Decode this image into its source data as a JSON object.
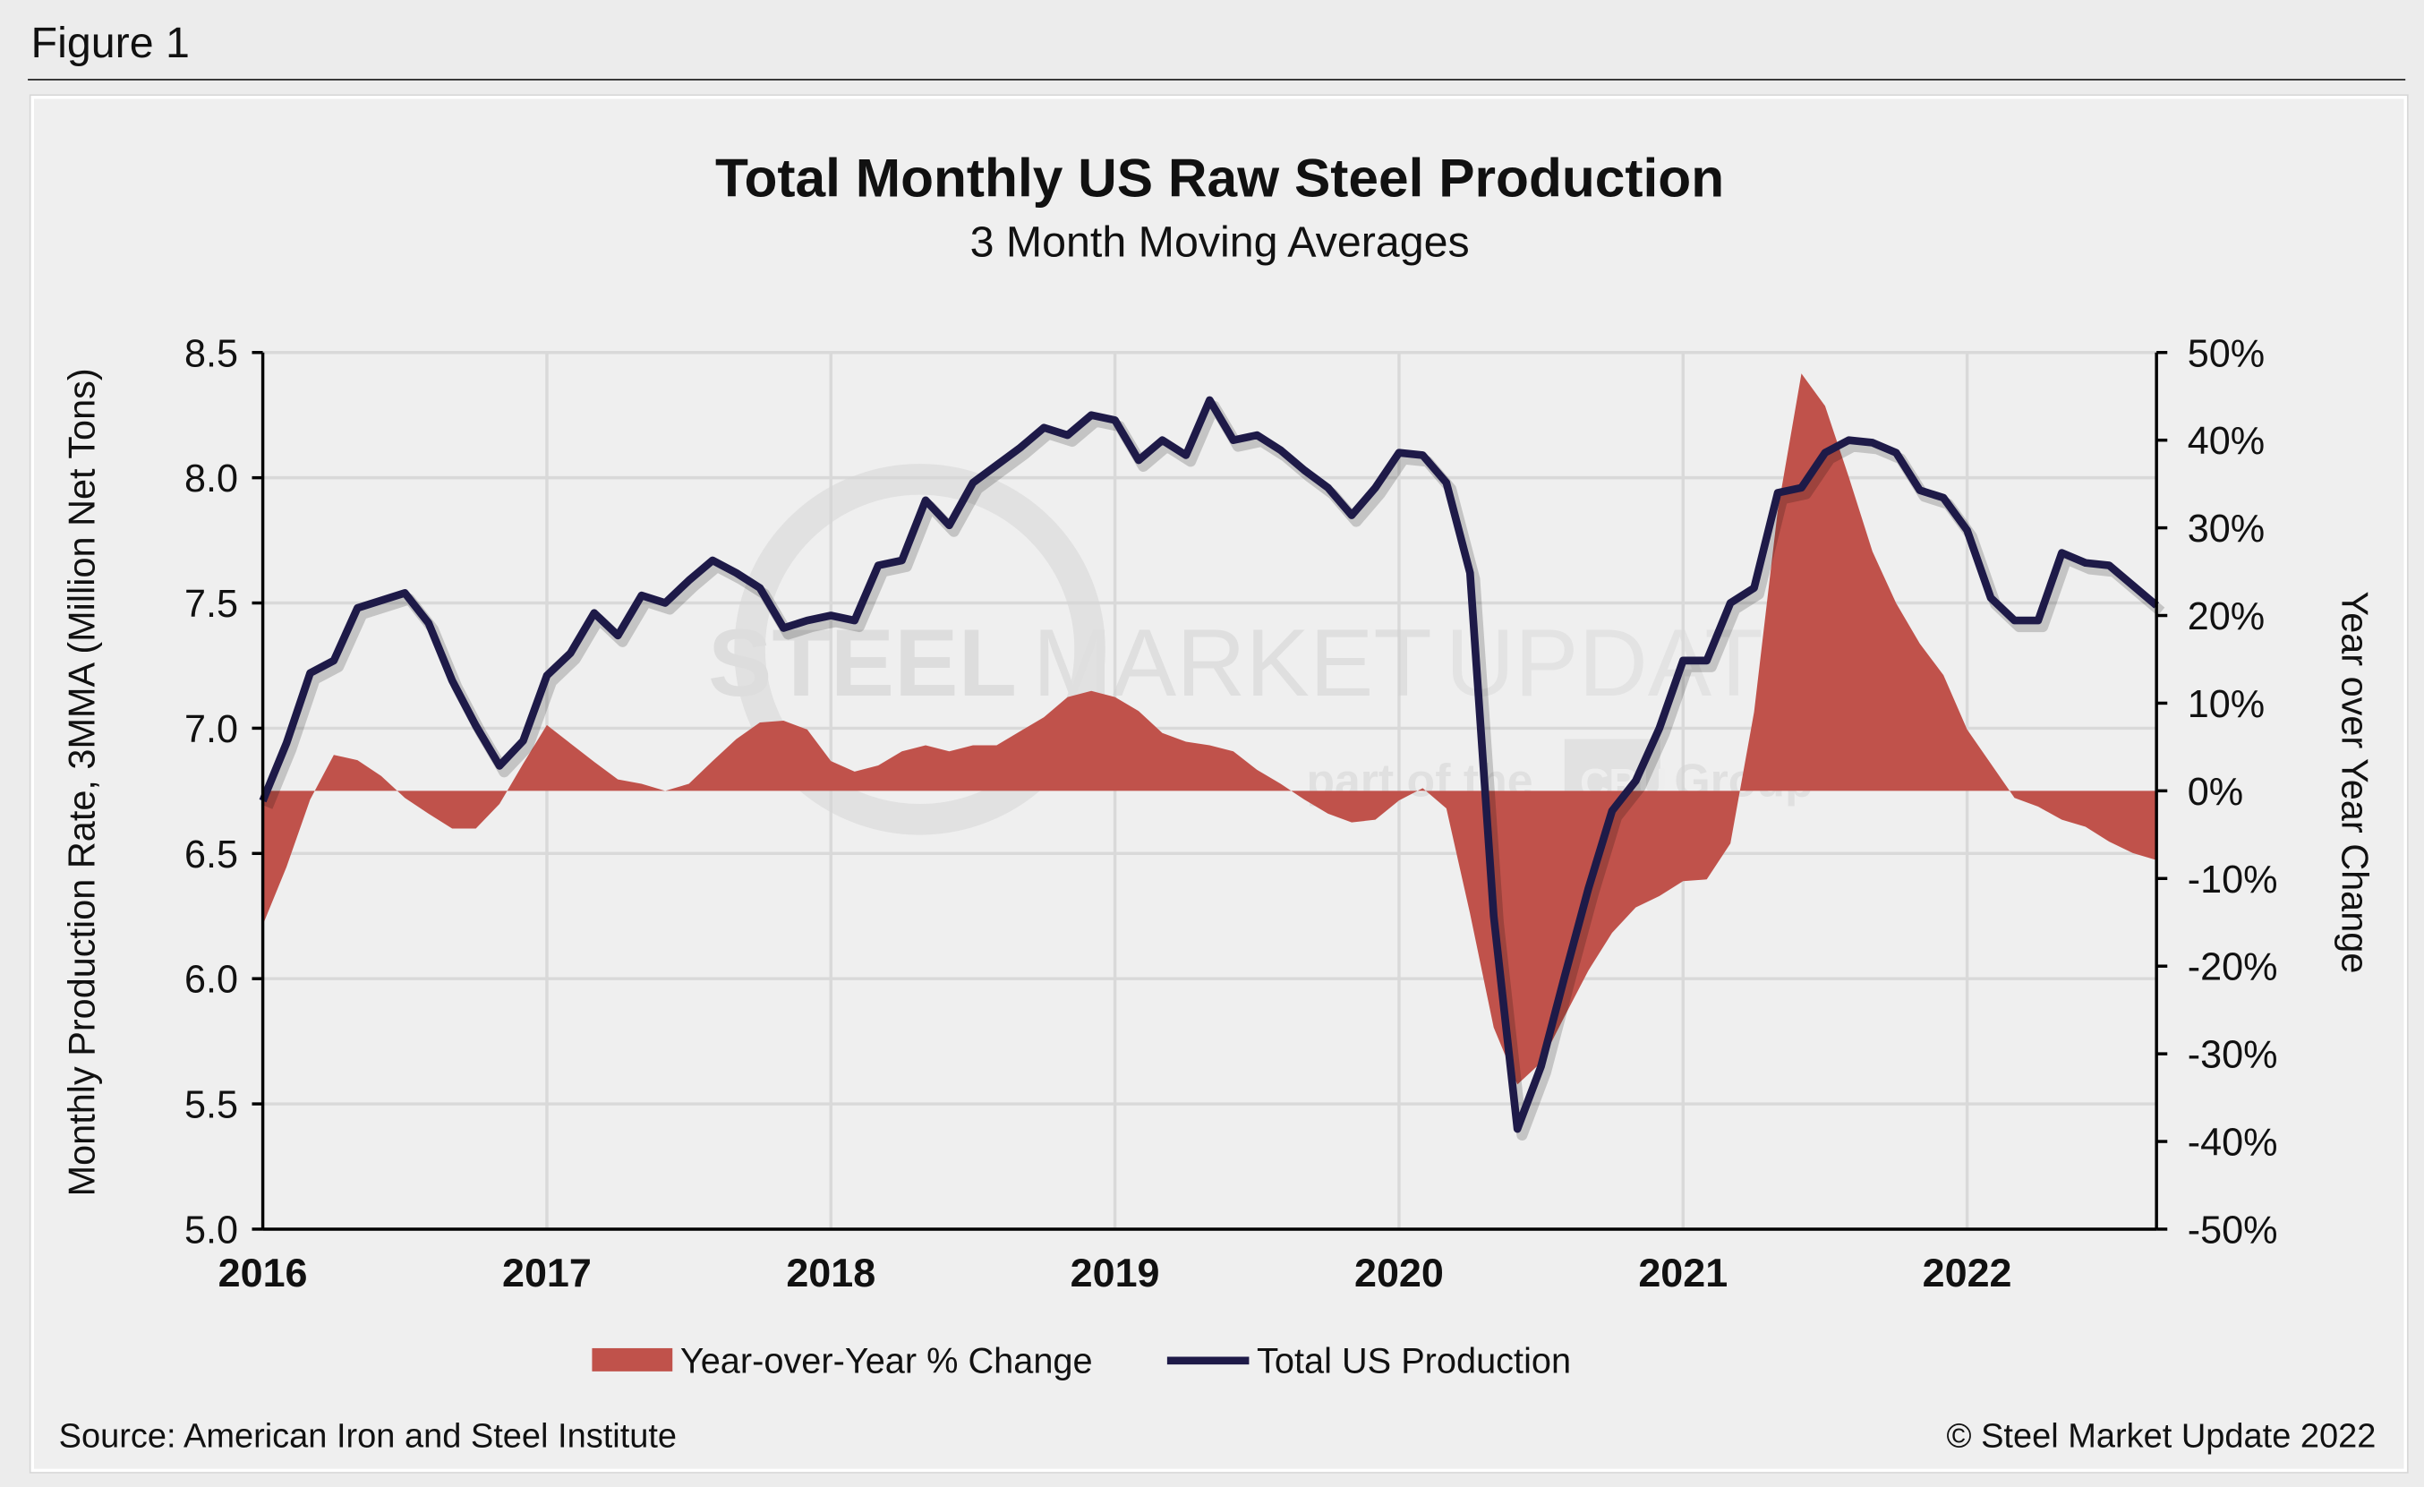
{
  "figure_label": "Figure 1",
  "source": "Source: American Iron and Steel Institute",
  "copyright": "© Steel Market Update 2022",
  "watermark": {
    "line1_bold": "STEEL",
    "line1_mid": " MARKET",
    "line1_light": " UPDATE",
    "line2a": "part of the",
    "logo": "CRU",
    "line2b": "Group"
  },
  "colors": {
    "area": "#c0524b",
    "line": "#1e1a48",
    "grid": "#d9d9d9"
  },
  "chart_data": {
    "type": "line",
    "title": "Total Monthly US Raw Steel Production",
    "subtitle": "3 Month Moving Averages",
    "ylabel": "Monthly Production Rate, 3MMA (Million Net Tons)",
    "y2label": "Year over Year Change",
    "ylim": [
      5.0,
      8.5
    ],
    "y2lim": [
      -50,
      50
    ],
    "yticks": [
      "8.5",
      "8.0",
      "7.5",
      "7.0",
      "6.5",
      "6.0",
      "5.5",
      "5.0"
    ],
    "y2ticks": [
      "50%",
      "40%",
      "30%",
      "20%",
      "10%",
      "0%",
      "-10%",
      "-20%",
      "-30%",
      "-40%",
      "-50%"
    ],
    "xticks": [
      "2016",
      "2017",
      "2018",
      "2019",
      "2020",
      "2021",
      "2022"
    ],
    "xrange": [
      "2016-01",
      "2022-09"
    ],
    "grid": true,
    "legend_position": "bottom",
    "x": [
      "2016-01",
      "2016-02",
      "2016-03",
      "2016-04",
      "2016-05",
      "2016-06",
      "2016-07",
      "2016-08",
      "2016-09",
      "2016-10",
      "2016-11",
      "2016-12",
      "2017-01",
      "2017-02",
      "2017-03",
      "2017-04",
      "2017-05",
      "2017-06",
      "2017-07",
      "2017-08",
      "2017-09",
      "2017-10",
      "2017-11",
      "2017-12",
      "2018-01",
      "2018-02",
      "2018-03",
      "2018-04",
      "2018-05",
      "2018-06",
      "2018-07",
      "2018-08",
      "2018-09",
      "2018-10",
      "2018-11",
      "2018-12",
      "2019-01",
      "2019-02",
      "2019-03",
      "2019-04",
      "2019-05",
      "2019-06",
      "2019-07",
      "2019-08",
      "2019-09",
      "2019-10",
      "2019-11",
      "2019-12",
      "2020-01",
      "2020-02",
      "2020-03",
      "2020-04",
      "2020-05",
      "2020-06",
      "2020-07",
      "2020-08",
      "2020-09",
      "2020-10",
      "2020-11",
      "2020-12",
      "2021-01",
      "2021-02",
      "2021-03",
      "2021-04",
      "2021-05",
      "2021-06",
      "2021-07",
      "2021-08",
      "2021-09",
      "2021-10",
      "2021-11",
      "2021-12",
      "2022-01",
      "2022-02",
      "2022-03",
      "2022-04",
      "2022-05",
      "2022-06",
      "2022-07",
      "2022-08",
      "2022-09"
    ],
    "series": [
      {
        "name": "Year-over-Year % Change",
        "type": "area",
        "axis": "right",
        "values": [
          -15.3,
          -8.7,
          -1.0,
          4.1,
          3.5,
          1.7,
          -0.8,
          -2.6,
          -4.3,
          -4.3,
          -1.5,
          3.1,
          7.5,
          5.4,
          3.3,
          1.3,
          0.8,
          0.0,
          0.8,
          3.4,
          5.9,
          7.8,
          8.0,
          7.0,
          3.4,
          2.2,
          2.9,
          4.5,
          5.2,
          4.5,
          5.2,
          5.2,
          6.8,
          8.4,
          10.7,
          11.4,
          10.7,
          9.1,
          6.6,
          5.6,
          5.2,
          4.5,
          2.4,
          0.8,
          -1.0,
          -2.6,
          -3.6,
          -3.3,
          -1.1,
          0.3,
          -2.0,
          -14.0,
          -27.0,
          -33.5,
          -31.0,
          -25.7,
          -20.5,
          -16.2,
          -13.3,
          -12.0,
          -10.3,
          -10.1,
          -6.0,
          9.0,
          32.0,
          47.6,
          43.9,
          35.8,
          27.3,
          21.4,
          16.8,
          13.2,
          7.0,
          3.1,
          -0.8,
          -1.8,
          -3.3,
          -4.1,
          -5.8,
          -7.1,
          -7.9
        ]
      },
      {
        "name": "Total US Production",
        "type": "line",
        "axis": "left",
        "values": [
          6.71,
          6.94,
          7.22,
          7.27,
          7.48,
          7.51,
          7.54,
          7.42,
          7.19,
          7.01,
          6.85,
          6.95,
          7.21,
          7.3,
          7.46,
          7.37,
          7.53,
          7.5,
          7.59,
          7.67,
          7.62,
          7.56,
          7.4,
          7.43,
          7.45,
          7.43,
          7.65,
          7.67,
          7.91,
          7.81,
          7.98,
          8.05,
          8.12,
          8.2,
          8.17,
          8.25,
          8.23,
          8.07,
          8.15,
          8.09,
          8.31,
          8.15,
          8.17,
          8.11,
          8.03,
          7.96,
          7.85,
          7.96,
          8.1,
          8.09,
          7.98,
          7.62,
          6.25,
          5.4,
          5.65,
          6.01,
          6.36,
          6.67,
          6.79,
          7.0,
          7.27,
          7.27,
          7.5,
          7.56,
          7.94,
          7.96,
          8.1,
          8.15,
          8.14,
          8.1,
          7.95,
          7.92,
          7.79,
          7.52,
          7.43,
          7.43,
          7.7,
          7.66,
          7.65,
          7.57,
          7.49
        ]
      }
    ]
  }
}
